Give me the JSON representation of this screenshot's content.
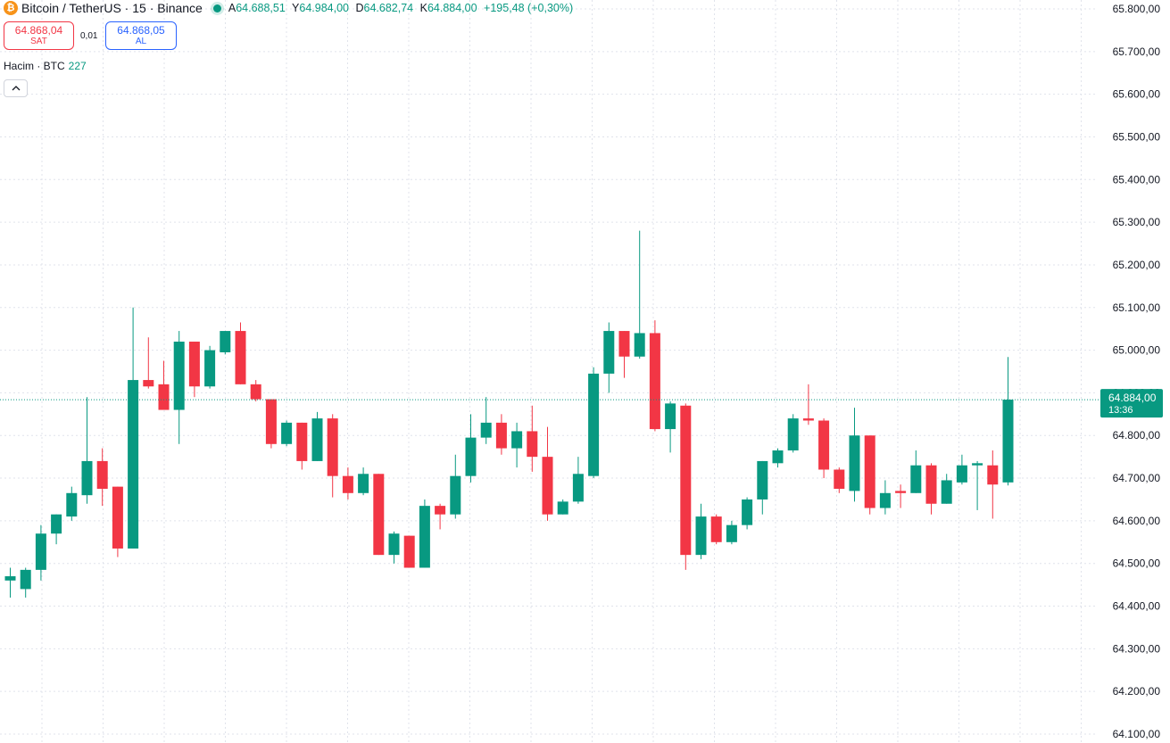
{
  "header": {
    "coin_icon_glyph": "₿",
    "symbol": "Bitcoin / TetherUS · 15 · Binance",
    "ohlc": {
      "open_label": "A",
      "open": "64.688,51",
      "high_label": "Y",
      "high": "64.984,00",
      "low_label": "D",
      "low": "64.682,74",
      "close_label": "K",
      "close": "64.884,00",
      "change": "+195,48 (+0,30%)"
    }
  },
  "trade": {
    "sell_price": "64.868,04",
    "sell_label": "SAT",
    "spread": "0,01",
    "buy_price": "64.868,05",
    "buy_label": "AL"
  },
  "volume": {
    "label": "Hacim · BTC",
    "value": "227"
  },
  "colors": {
    "up": "#089981",
    "down": "#f23645",
    "grid": "#e0e3eb",
    "axis_text": "#131722"
  },
  "chart_data": {
    "type": "candlestick",
    "ylim": [
      64100,
      65800
    ],
    "yticks": [
      65800,
      65700,
      65600,
      65500,
      65400,
      65300,
      65200,
      65100,
      65000,
      64900,
      64800,
      64700,
      64600,
      64500,
      64400,
      64300,
      64200,
      64100
    ],
    "ytick_labels": [
      "65.800,00",
      "65.700,00",
      "65.600,00",
      "65.500,00",
      "65.400,00",
      "65.300,00",
      "65.200,00",
      "65.100,00",
      "65.000,00",
      "64.900,00",
      "64.800,00",
      "64.700,00",
      "64.600,00",
      "64.500,00",
      "64.400,00",
      "64.300,00",
      "64.200,00",
      "64.100,00"
    ],
    "last_price": 64884,
    "last_price_label": "64.884,00",
    "countdown_label": "13:36",
    "candles": [
      {
        "o": 64460,
        "h": 64490,
        "l": 64420,
        "c": 64470
      },
      {
        "o": 64440,
        "h": 64490,
        "l": 64420,
        "c": 64485
      },
      {
        "o": 64485,
        "h": 64590,
        "l": 64460,
        "c": 64570
      },
      {
        "o": 64570,
        "h": 64615,
        "l": 64545,
        "c": 64615
      },
      {
        "o": 64610,
        "h": 64680,
        "l": 64600,
        "c": 64665
      },
      {
        "o": 64660,
        "h": 64890,
        "l": 64640,
        "c": 64740
      },
      {
        "o": 64740,
        "h": 64770,
        "l": 64635,
        "c": 64675
      },
      {
        "o": 64680,
        "h": 64680,
        "l": 64515,
        "c": 64535
      },
      {
        "o": 64535,
        "h": 65100,
        "l": 64535,
        "c": 64930
      },
      {
        "o": 64930,
        "h": 65030,
        "l": 64910,
        "c": 64915
      },
      {
        "o": 64920,
        "h": 64975,
        "l": 64860,
        "c": 64860
      },
      {
        "o": 64860,
        "h": 65045,
        "l": 64780,
        "c": 65020
      },
      {
        "o": 65020,
        "h": 65020,
        "l": 64890,
        "c": 64915
      },
      {
        "o": 64915,
        "h": 65010,
        "l": 64910,
        "c": 65000
      },
      {
        "o": 64995,
        "h": 65045,
        "l": 64990,
        "c": 65045
      },
      {
        "o": 65045,
        "h": 65065,
        "l": 64920,
        "c": 64920
      },
      {
        "o": 64920,
        "h": 64930,
        "l": 64880,
        "c": 64885
      },
      {
        "o": 64885,
        "h": 64885,
        "l": 64770,
        "c": 64780
      },
      {
        "o": 64780,
        "h": 64835,
        "l": 64775,
        "c": 64830
      },
      {
        "o": 64830,
        "h": 64830,
        "l": 64720,
        "c": 64740
      },
      {
        "o": 64740,
        "h": 64855,
        "l": 64740,
        "c": 64840
      },
      {
        "o": 64840,
        "h": 64850,
        "l": 64655,
        "c": 64705
      },
      {
        "o": 64705,
        "h": 64725,
        "l": 64650,
        "c": 64665
      },
      {
        "o": 64665,
        "h": 64725,
        "l": 64660,
        "c": 64710
      },
      {
        "o": 64710,
        "h": 64710,
        "l": 64520,
        "c": 64520
      },
      {
        "o": 64520,
        "h": 64575,
        "l": 64500,
        "c": 64570
      },
      {
        "o": 64565,
        "h": 64565,
        "l": 64490,
        "c": 64490
      },
      {
        "o": 64490,
        "h": 64650,
        "l": 64490,
        "c": 64635
      },
      {
        "o": 64635,
        "h": 64640,
        "l": 64580,
        "c": 64615
      },
      {
        "o": 64615,
        "h": 64755,
        "l": 64605,
        "c": 64705
      },
      {
        "o": 64705,
        "h": 64850,
        "l": 64690,
        "c": 64795
      },
      {
        "o": 64795,
        "h": 64890,
        "l": 64780,
        "c": 64830
      },
      {
        "o": 64830,
        "h": 64850,
        "l": 64755,
        "c": 64770
      },
      {
        "o": 64770,
        "h": 64830,
        "l": 64725,
        "c": 64810
      },
      {
        "o": 64810,
        "h": 64870,
        "l": 64715,
        "c": 64750
      },
      {
        "o": 64750,
        "h": 64820,
        "l": 64600,
        "c": 64615
      },
      {
        "o": 64615,
        "h": 64650,
        "l": 64615,
        "c": 64645
      },
      {
        "o": 64645,
        "h": 64750,
        "l": 64640,
        "c": 64710
      },
      {
        "o": 64705,
        "h": 64960,
        "l": 64700,
        "c": 64945
      },
      {
        "o": 64945,
        "h": 65065,
        "l": 64900,
        "c": 65045
      },
      {
        "o": 65045,
        "h": 65045,
        "l": 64935,
        "c": 64985
      },
      {
        "o": 64985,
        "h": 65280,
        "l": 64980,
        "c": 65040
      },
      {
        "o": 65040,
        "h": 65070,
        "l": 64810,
        "c": 64815
      },
      {
        "o": 64815,
        "h": 64880,
        "l": 64760,
        "c": 64875
      },
      {
        "o": 64870,
        "h": 64875,
        "l": 64485,
        "c": 64520
      },
      {
        "o": 64520,
        "h": 64640,
        "l": 64510,
        "c": 64610
      },
      {
        "o": 64610,
        "h": 64615,
        "l": 64545,
        "c": 64550
      },
      {
        "o": 64550,
        "h": 64600,
        "l": 64545,
        "c": 64590
      },
      {
        "o": 64590,
        "h": 64655,
        "l": 64580,
        "c": 64650
      },
      {
        "o": 64650,
        "h": 64740,
        "l": 64615,
        "c": 64740
      },
      {
        "o": 64735,
        "h": 64770,
        "l": 64725,
        "c": 64765
      },
      {
        "o": 64765,
        "h": 64850,
        "l": 64760,
        "c": 64840
      },
      {
        "o": 64840,
        "h": 64920,
        "l": 64825,
        "c": 64835
      },
      {
        "o": 64835,
        "h": 64840,
        "l": 64700,
        "c": 64720
      },
      {
        "o": 64720,
        "h": 64725,
        "l": 64665,
        "c": 64675
      },
      {
        "o": 64670,
        "h": 64865,
        "l": 64645,
        "c": 64800
      },
      {
        "o": 64800,
        "h": 64800,
        "l": 64615,
        "c": 64630
      },
      {
        "o": 64630,
        "h": 64695,
        "l": 64615,
        "c": 64665
      },
      {
        "o": 64670,
        "h": 64685,
        "l": 64630,
        "c": 64665
      },
      {
        "o": 64665,
        "h": 64765,
        "l": 64665,
        "c": 64730
      },
      {
        "o": 64730,
        "h": 64735,
        "l": 64615,
        "c": 64640
      },
      {
        "o": 64640,
        "h": 64710,
        "l": 64640,
        "c": 64695
      },
      {
        "o": 64690,
        "h": 64755,
        "l": 64685,
        "c": 64730
      },
      {
        "o": 64730,
        "h": 64740,
        "l": 64625,
        "c": 64735
      },
      {
        "o": 64730,
        "h": 64765,
        "l": 64605,
        "c": 64685
      },
      {
        "o": 64690,
        "h": 64984,
        "l": 64683,
        "c": 64884
      }
    ]
  }
}
